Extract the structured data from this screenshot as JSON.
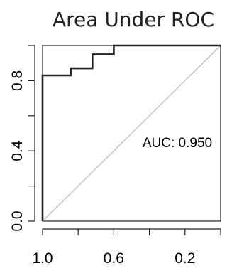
{
  "chart_data": {
    "type": "line",
    "title": "Area Under ROC",
    "xlabel": "",
    "ylabel": "",
    "x_reversed": true,
    "xlim": [
      1.0,
      0.0
    ],
    "ylim": [
      0.0,
      1.0
    ],
    "x_ticks": [
      1.0,
      0.8,
      0.6,
      0.4,
      0.2,
      0.0
    ],
    "x_tick_labels": [
      "1.0",
      "",
      "0.6",
      "",
      "0.2",
      ""
    ],
    "y_ticks": [
      0.0,
      0.2,
      0.4,
      0.6,
      0.8,
      1.0
    ],
    "y_tick_labels": [
      "0.0",
      "",
      "0.4",
      "",
      "0.8",
      ""
    ],
    "grid": false,
    "series": [
      {
        "x": [
          1.0,
          1.0,
          0.96,
          0.84,
          0.84,
          0.72,
          0.72,
          0.6,
          0.6,
          0.0
        ],
        "y": [
          0.0,
          0.83,
          0.83,
          0.83,
          0.87,
          0.87,
          0.95,
          0.95,
          1.0,
          1.0
        ],
        "color": "#222222"
      }
    ],
    "reference_line": {
      "x": [
        1.0,
        0.0
      ],
      "y": [
        0.0,
        1.0
      ],
      "color": "#bdbdbd"
    },
    "annotation": {
      "text": "AUC: 0.950",
      "x": 0.3,
      "y": 0.4
    }
  }
}
